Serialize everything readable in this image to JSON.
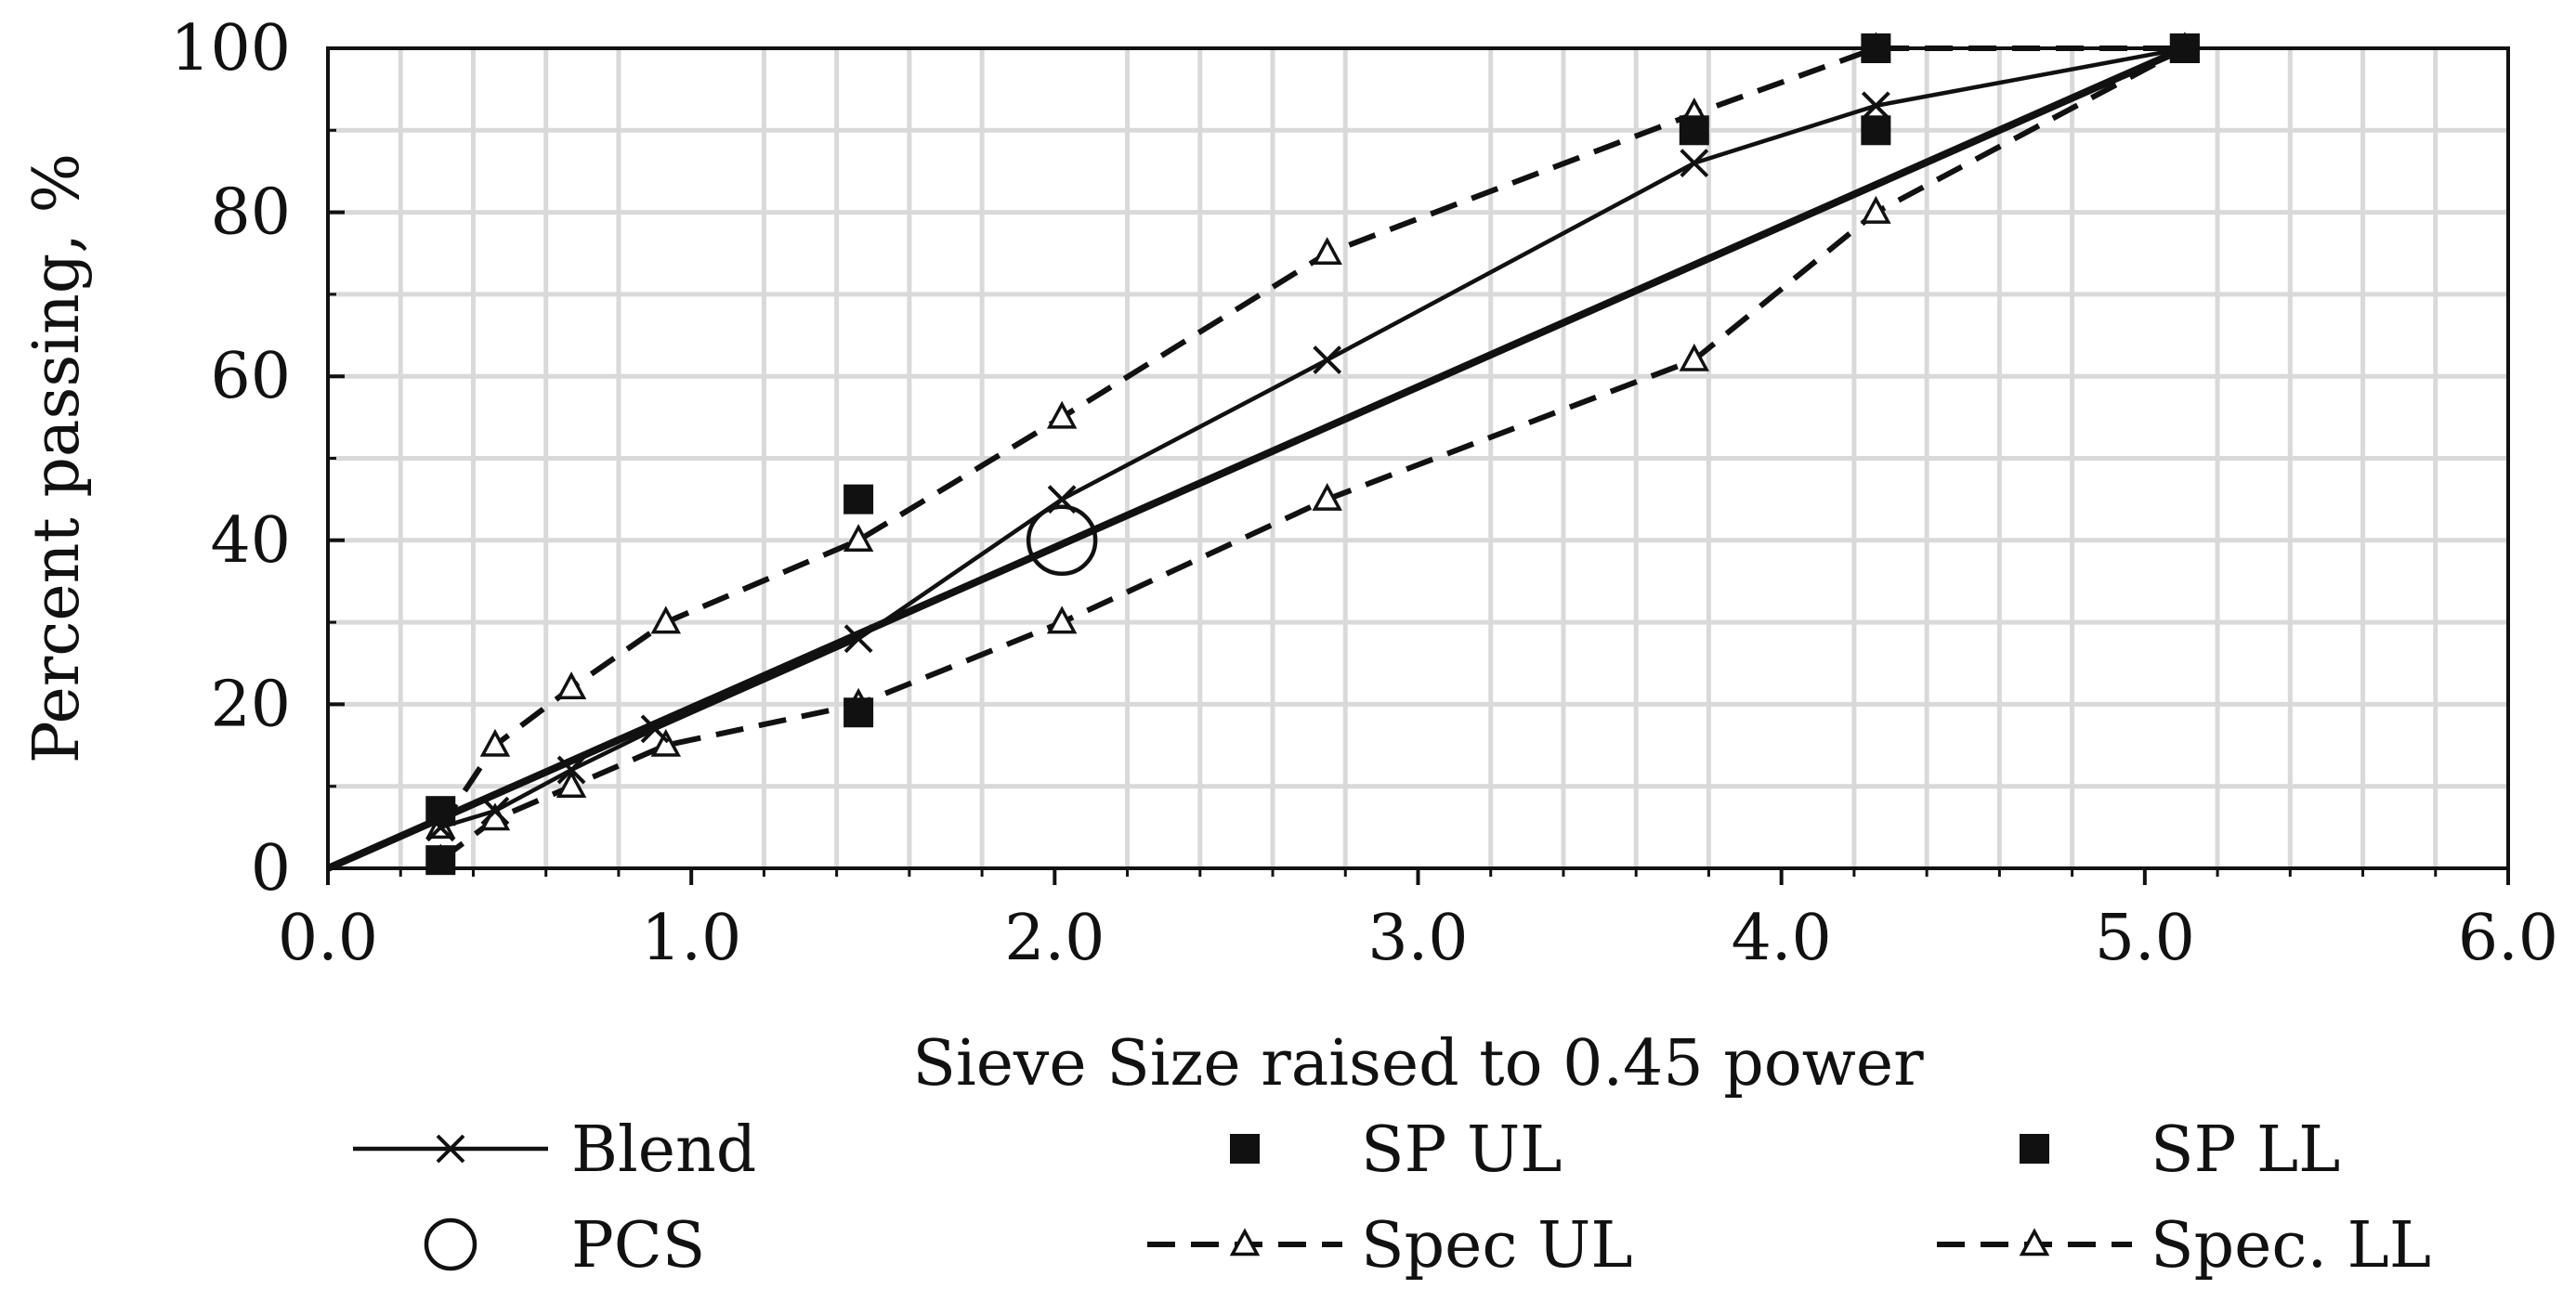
{
  "chart_data": {
    "type": "line",
    "title": "",
    "xlabel": "Sieve Size raised to 0.45 power",
    "ylabel": "Percent passing, %",
    "xlim": [
      0,
      6
    ],
    "ylim": [
      0,
      100
    ],
    "x_ticks": [
      "0.0",
      "1.0",
      "2.0",
      "3.0",
      "4.0",
      "5.0",
      "6.0"
    ],
    "y_ticks": [
      "0",
      "20",
      "40",
      "60",
      "80",
      "100"
    ],
    "grid": true,
    "max_density_line": {
      "x": [
        0.0,
        5.11
      ],
      "y": [
        0,
        100
      ]
    },
    "series": [
      {
        "name": "Blend",
        "style": "solid-x",
        "x": [
          0.31,
          0.46,
          0.67,
          0.9,
          1.46,
          2.02,
          2.75,
          3.76,
          4.26,
          5.11
        ],
        "y": [
          5,
          7,
          12,
          17,
          28,
          45,
          62,
          86,
          93,
          100
        ]
      },
      {
        "name": "PCS",
        "style": "circle",
        "x": [
          2.02
        ],
        "y": [
          40
        ]
      },
      {
        "name": "SP UL",
        "style": "square",
        "x": [
          0.31,
          1.46,
          4.26,
          5.11
        ],
        "y": [
          7,
          45,
          100,
          100
        ]
      },
      {
        "name": "Spec UL",
        "style": "dashed-triangle",
        "x": [
          0.31,
          0.46,
          0.67,
          0.93,
          1.46,
          2.02,
          2.75,
          3.76,
          4.26,
          5.11
        ],
        "y": [
          5,
          15,
          22,
          30,
          40,
          55,
          75,
          92,
          100,
          100
        ]
      },
      {
        "name": "SP LL",
        "style": "square",
        "x": [
          0.31,
          1.46,
          3.76,
          4.26,
          5.11
        ],
        "y": [
          1,
          19,
          90,
          90,
          100
        ]
      },
      {
        "name": "Spec. LL",
        "style": "dashed-triangle",
        "x": [
          0.31,
          0.46,
          0.67,
          0.93,
          1.46,
          2.02,
          2.75,
          3.76,
          4.26,
          5.11
        ],
        "y": [
          1,
          6,
          10,
          15,
          20,
          30,
          45,
          62,
          80,
          100
        ]
      }
    ],
    "legend": {
      "position": "bottom",
      "entries": [
        "Blend",
        "SP UL",
        "SP LL",
        "PCS",
        "Spec UL",
        "Spec. LL"
      ]
    }
  }
}
